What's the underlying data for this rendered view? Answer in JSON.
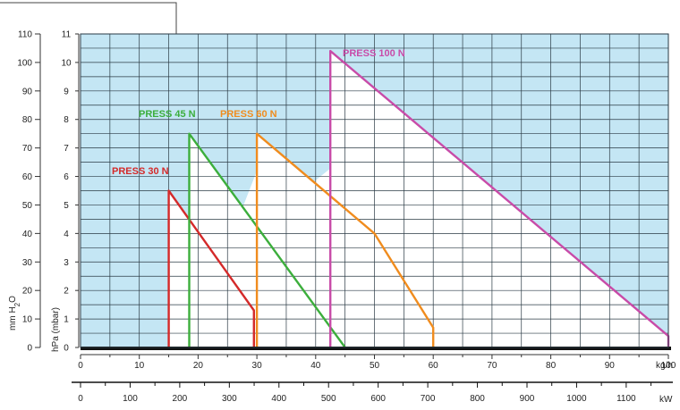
{
  "chart_data": {
    "type": "line",
    "title": "",
    "y_left_outer": {
      "label": "mm H2O",
      "ticks": [
        0,
        10,
        20,
        30,
        40,
        50,
        60,
        70,
        80,
        90,
        100,
        110
      ],
      "range": [
        0,
        110
      ]
    },
    "y_left_inner": {
      "label": "hPa (mbar)",
      "ticks": [
        0,
        1,
        2,
        3,
        4,
        5,
        6,
        7,
        8,
        9,
        10,
        11
      ],
      "range": [
        0,
        11
      ]
    },
    "x_primary": {
      "unit": "kg/h",
      "ticks": [
        0,
        10,
        20,
        30,
        40,
        50,
        60,
        70,
        80,
        90,
        100
      ],
      "range": [
        0,
        100
      ]
    },
    "x_secondary": {
      "unit": "kW",
      "ticks": [
        0,
        100,
        200,
        300,
        400,
        500,
        600,
        700,
        800,
        900,
        1000,
        1100
      ],
      "range": [
        0,
        1185
      ]
    },
    "grid": true,
    "series": [
      {
        "name": "PRESS 30 N",
        "color": "#d42a2a",
        "points": [
          [
            15,
            0
          ],
          [
            15,
            5.5
          ],
          [
            29.5,
            1.3
          ],
          [
            29.5,
            0
          ]
        ]
      },
      {
        "name": "PRESS 45 N",
        "color": "#3cae3c",
        "points": [
          [
            18.5,
            0
          ],
          [
            18.5,
            7.5
          ],
          [
            45,
            0
          ]
        ]
      },
      {
        "name": "PRESS 60 N",
        "color": "#f08c1e",
        "points": [
          [
            30,
            0
          ],
          [
            30,
            7.5
          ],
          [
            50,
            4.0
          ],
          [
            60,
            0.7
          ],
          [
            60,
            0
          ]
        ]
      },
      {
        "name": "PRESS 100 N",
        "color": "#c84ba8",
        "points": [
          [
            42.5,
            0
          ],
          [
            42.5,
            10.4
          ],
          [
            100,
            0.4
          ],
          [
            100,
            0
          ]
        ]
      }
    ],
    "colors": {
      "unavailable_region": "#c4e6f4",
      "operating_region": "#ffffff",
      "grid": "#2a3a44"
    }
  }
}
